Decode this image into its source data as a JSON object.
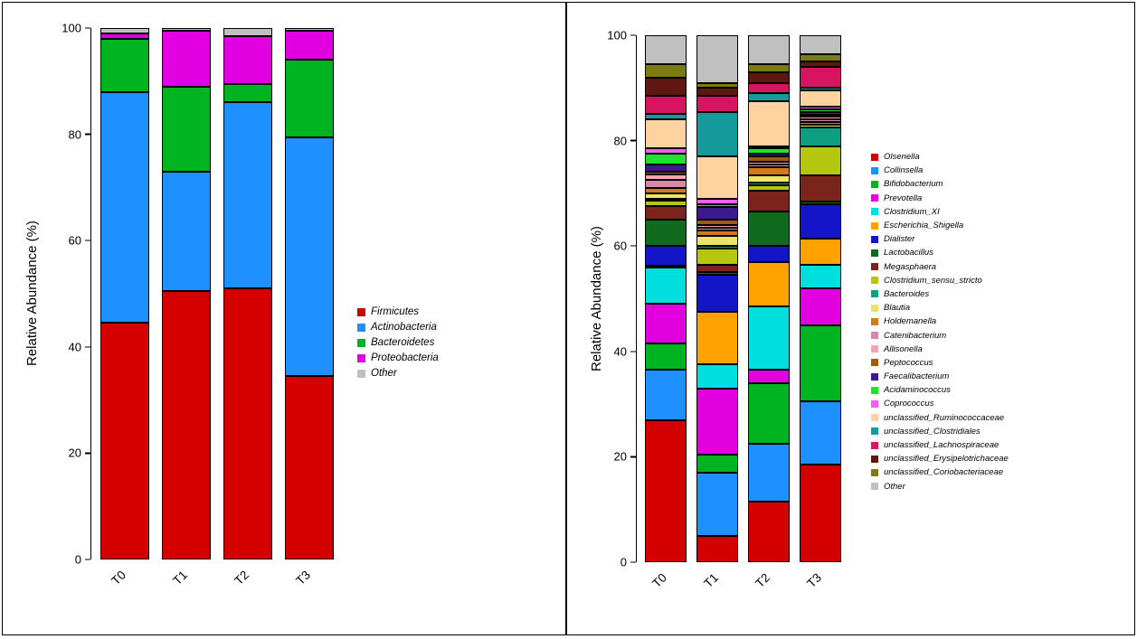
{
  "chart_data": [
    {
      "type": "bar",
      "stacked": true,
      "title": "",
      "xlabel": "",
      "ylabel": "Relative Abundance (%)",
      "ylim": [
        0,
        100
      ],
      "yticks": [
        0,
        20,
        40,
        60,
        80,
        100
      ],
      "grid": false,
      "legend_position": "right",
      "categories": [
        "T0",
        "T1",
        "T2",
        "T3"
      ],
      "series": [
        {
          "name": "Firmicutes",
          "color": "#d40000",
          "values": [
            44.5,
            50.5,
            51.0,
            34.5
          ]
        },
        {
          "name": "Actinobacteria",
          "color": "#1e90ff",
          "values": [
            43.5,
            22.5,
            35.0,
            45.0
          ]
        },
        {
          "name": "Bacteroidetes",
          "color": "#00b321",
          "values": [
            10.0,
            16.0,
            3.5,
            14.5
          ]
        },
        {
          "name": "Proteobacteria",
          "color": "#e000e0",
          "values": [
            1.0,
            10.5,
            9.0,
            5.5
          ]
        },
        {
          "name": "Other",
          "color": "#c0c0c0",
          "values": [
            1.0,
            0.5,
            1.5,
            0.5
          ]
        }
      ]
    },
    {
      "type": "bar",
      "stacked": true,
      "title": "",
      "xlabel": "",
      "ylabel": "Relative Abundance (%)",
      "ylim": [
        0,
        100
      ],
      "yticks": [
        0,
        20,
        40,
        60,
        80,
        100
      ],
      "grid": false,
      "legend_position": "right",
      "categories": [
        "T0",
        "T1",
        "T2",
        "T3"
      ],
      "series": [
        {
          "name": "Olsenella",
          "color": "#d40000",
          "values": [
            27.0,
            5.0,
            11.5,
            18.5
          ]
        },
        {
          "name": "Collinsella",
          "color": "#1e90ff",
          "values": [
            9.5,
            12.0,
            11.0,
            12.0
          ]
        },
        {
          "name": "Bifidobacterium",
          "color": "#00b321",
          "values": [
            5.0,
            3.5,
            11.5,
            14.5
          ]
        },
        {
          "name": "Prevotella",
          "color": "#e000e0",
          "values": [
            7.5,
            12.5,
            2.5,
            7.0
          ]
        },
        {
          "name": "Clostridium_XI",
          "color": "#00dede",
          "values": [
            7.0,
            4.5,
            12.0,
            4.5
          ]
        },
        {
          "name": "Escherichia_Shigella",
          "color": "#ffa200",
          "values": [
            0.3,
            10.0,
            8.5,
            5.0
          ]
        },
        {
          "name": "Dialister",
          "color": "#1414c8",
          "values": [
            3.7,
            7.0,
            3.0,
            6.5
          ]
        },
        {
          "name": "Lactobacillus",
          "color": "#116b1e",
          "values": [
            5.0,
            0.5,
            6.5,
            0.5
          ]
        },
        {
          "name": "Megasphaera",
          "color": "#7b241c",
          "values": [
            2.5,
            1.5,
            4.0,
            5.0
          ]
        },
        {
          "name": "Clostridium_sensu_stricto",
          "color": "#b5c60e",
          "values": [
            1.0,
            3.0,
            1.0,
            5.5
          ]
        },
        {
          "name": "Bacteroides",
          "color": "#0e9e82",
          "values": [
            0.5,
            0.5,
            0.5,
            3.5
          ]
        },
        {
          "name": "Blautia",
          "color": "#ede36a",
          "values": [
            1.0,
            2.0,
            1.5,
            0.5
          ]
        },
        {
          "name": "Holdemanella",
          "color": "#cf7a1d",
          "values": [
            1.0,
            1.0,
            1.5,
            0.5
          ]
        },
        {
          "name": "Catenibacterium",
          "color": "#d887a8",
          "values": [
            1.5,
            0.5,
            0.5,
            0.5
          ]
        },
        {
          "name": "Allisonella",
          "color": "#f4a4b4",
          "values": [
            1.0,
            0.5,
            0.5,
            0.5
          ]
        },
        {
          "name": "Peptococcus",
          "color": "#9c5b10",
          "values": [
            0.5,
            1.0,
            1.0,
            0.5
          ]
        },
        {
          "name": "Faecalibacterium",
          "color": "#3c1a8e",
          "values": [
            1.5,
            2.5,
            0.5,
            0.5
          ]
        },
        {
          "name": "Acidaminococcus",
          "color": "#19e629",
          "values": [
            2.0,
            0.5,
            1.0,
            0.5
          ]
        },
        {
          "name": "Coprococcus",
          "color": "#f05ef0",
          "values": [
            1.0,
            1.0,
            0.5,
            0.5
          ]
        },
        {
          "name": "unclassified_Ruminococcaceae",
          "color": "#ffd3a0",
          "values": [
            5.5,
            8.0,
            8.5,
            3.0
          ]
        },
        {
          "name": "unclassified_Clostridiales",
          "color": "#159a9a",
          "values": [
            1.0,
            8.5,
            1.5,
            0.5
          ]
        },
        {
          "name": "unclassified_Lachnospiraceae",
          "color": "#d6145f",
          "values": [
            3.5,
            3.0,
            2.0,
            4.0
          ]
        },
        {
          "name": "unclassified_Erysipelotrichaceae",
          "color": "#5e1711",
          "values": [
            3.5,
            1.5,
            2.0,
            1.0
          ]
        },
        {
          "name": "unclassified_Coriobacteriaceae",
          "color": "#7c7a12",
          "values": [
            2.5,
            1.0,
            1.5,
            1.5
          ]
        },
        {
          "name": "Other",
          "color": "#c0c0c0",
          "values": [
            5.5,
            9.0,
            5.5,
            3.5
          ]
        }
      ]
    }
  ]
}
